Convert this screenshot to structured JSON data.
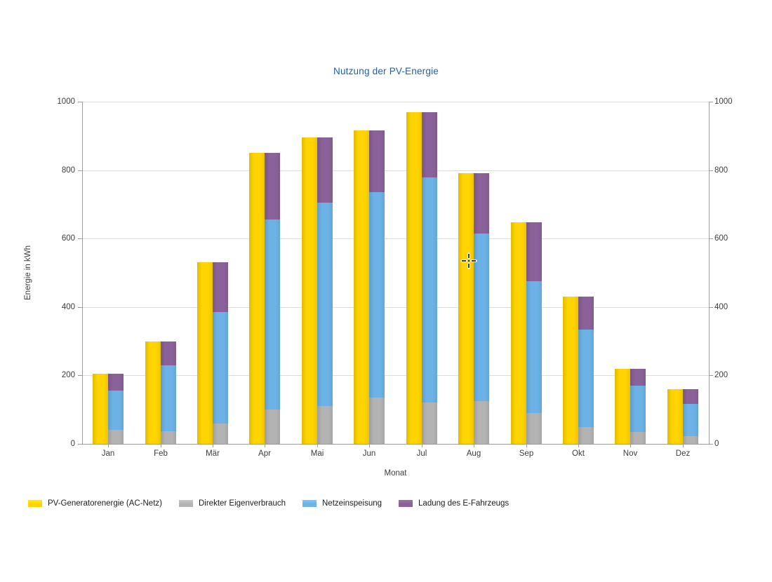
{
  "title": "Nutzung der PV-Energie",
  "axes": {
    "y_label": "Energie in kWh",
    "x_label": "Monat",
    "y_ticks": [
      0,
      200,
      400,
      600,
      800,
      1000
    ]
  },
  "legend": {
    "items": [
      {
        "label": "PV-Generatorenergie (AC-Netz)",
        "color": "#ffd400"
      },
      {
        "label": "Direkter Eigenverbrauch",
        "color": "#b3b3b3"
      },
      {
        "label": "Netzeinspeisung",
        "color": "#6cb2e6"
      },
      {
        "label": "Ladung des E-Fahrzeugs",
        "color": "#8a6299"
      }
    ]
  },
  "chart_data": {
    "type": "bar",
    "title": "Nutzung der PV-Energie",
    "xlabel": "Monat",
    "ylabel": "Energie in kWh",
    "ylim": [
      0,
      1000
    ],
    "y_tick_step": 200,
    "grid": true,
    "legend_position": "bottom-left",
    "layout": "paired: single bar (PV total) beside stacked bar (Eigenverbrauch+Netzeinspeisung+EV) per month",
    "categories": [
      "Jan",
      "Feb",
      "Mär",
      "Apr",
      "Mai",
      "Jun",
      "Jul",
      "Aug",
      "Sep",
      "Okt",
      "Nov",
      "Dez"
    ],
    "series": [
      {
        "name": "PV-Generatorenergie (AC-Netz)",
        "stack": "left",
        "color": "#ffd400",
        "values": [
          205,
          300,
          530,
          850,
          895,
          915,
          970,
          790,
          648,
          430,
          220,
          160
        ]
      },
      {
        "name": "Direkter Eigenverbrauch",
        "stack": "right",
        "color": "#b3b3b3",
        "values": [
          40,
          37,
          60,
          100,
          110,
          135,
          120,
          125,
          90,
          50,
          35,
          22
        ]
      },
      {
        "name": "Netzeinspeisung",
        "stack": "right",
        "color": "#6cb2e6",
        "values": [
          115,
          193,
          325,
          555,
          595,
          600,
          658,
          490,
          385,
          283,
          135,
          95
        ]
      },
      {
        "name": "Ladung des E-Fahrzeugs",
        "stack": "right",
        "color": "#8a6299",
        "values": [
          50,
          70,
          145,
          195,
          190,
          180,
          192,
          175,
          173,
          97,
          50,
          43
        ]
      }
    ]
  }
}
